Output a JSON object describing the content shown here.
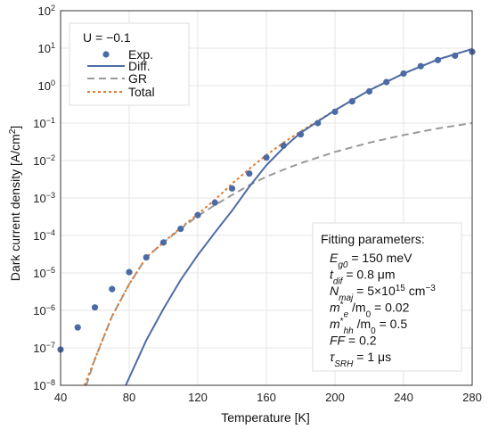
{
  "chart_data": {
    "type": "line",
    "xlabel": "Temperature [K]",
    "ylabel": "Dark current density [A/cm",
    "ylabel_sup": "2",
    "ylabel_end": "]",
    "xlim": [
      40,
      280
    ],
    "ylim_exp": [
      -8,
      2
    ],
    "yscale": "log",
    "grid": true,
    "x_ticks": [
      40,
      80,
      120,
      160,
      200,
      240,
      280
    ],
    "x_tick_labels": [
      "40",
      "80",
      "120",
      "160",
      "200",
      "240",
      "280"
    ],
    "y_tick_exps": [
      -8,
      -7,
      -6,
      -5,
      -4,
      -3,
      -2,
      -1,
      0,
      1,
      2
    ],
    "y_tick_base": "10",
    "y_tick_sups": [
      "−8",
      "−7",
      "−6",
      "−5",
      "−4",
      "−3",
      "−2",
      "−1",
      "0",
      "1",
      "2"
    ],
    "legend": {
      "title": "U = −0.1",
      "placement": "top-left",
      "entries": [
        "Exp.",
        "Diff.",
        "GR",
        "Total"
      ]
    },
    "series": [
      {
        "name": "Exp.",
        "kind": "scatter",
        "color": "#4c6ba6",
        "x": [
          40,
          50,
          60,
          70,
          80,
          90,
          100,
          110,
          120,
          130,
          140,
          150,
          160,
          170,
          180,
          190,
          200,
          210,
          220,
          230,
          240,
          250,
          260,
          270,
          280
        ],
        "y": [
          9e-08,
          3.5e-07,
          1.2e-06,
          3.7e-06,
          1.05e-05,
          2.6e-05,
          6.5e-05,
          0.00015,
          0.00035,
          0.00075,
          0.0018,
          0.0045,
          0.012,
          0.025,
          0.05,
          0.1,
          0.2,
          0.38,
          0.7,
          1.25,
          2.1,
          3.3,
          4.8,
          6.3,
          8.0
        ]
      },
      {
        "name": "Diff.",
        "kind": "line",
        "color": "#4c6ba6",
        "style": "solid",
        "x": [
          78,
          90,
          100,
          110,
          120,
          130,
          140,
          150,
          160,
          170,
          180,
          200,
          220,
          240,
          260,
          280
        ],
        "y": [
          1e-08,
          1.6e-07,
          1.1e-06,
          6.5e-06,
          3e-05,
          0.00012,
          0.00046,
          0.002,
          0.0075,
          0.022,
          0.055,
          0.22,
          0.75,
          2.1,
          5.0,
          9.5
        ]
      },
      {
        "name": "GR",
        "kind": "line",
        "color": "#999999",
        "style": "dashed",
        "x": [
          55,
          60,
          70,
          80,
          90,
          100,
          110,
          120,
          130,
          140,
          150,
          160,
          170,
          180,
          200,
          220,
          240,
          260,
          280
        ],
        "y": [
          1e-08,
          5e-08,
          7e-07,
          5e-06,
          2.6e-05,
          6.5e-05,
          0.00015,
          0.00033,
          0.00065,
          0.0012,
          0.0022,
          0.0037,
          0.0057,
          0.0085,
          0.017,
          0.03,
          0.048,
          0.072,
          0.1
        ]
      },
      {
        "name": "Total",
        "kind": "line",
        "color": "#e07b30",
        "style": "dotted",
        "x": [
          54,
          60,
          70,
          80,
          90,
          100,
          110,
          120,
          130,
          140,
          150,
          160,
          170,
          180,
          200,
          220,
          240,
          260,
          280
        ],
        "y": [
          1e-08,
          5e-08,
          7e-07,
          5e-06,
          2.6e-05,
          6.6e-05,
          0.00016,
          0.00037,
          0.0009,
          0.0024,
          0.006,
          0.014,
          0.03,
          0.06,
          0.22,
          0.75,
          2.1,
          5.0,
          9.5
        ]
      }
    ],
    "parameters_box": {
      "title": "Fitting parameters:",
      "placement": "bottom-right",
      "lines": [
        {
          "sym": "E",
          "sub": "g0",
          "rest": " = 150 meV"
        },
        {
          "sym": "t",
          "sub": "dif",
          "rest": " = 0.8 μm"
        },
        {
          "sym": "N",
          "sub": "maj",
          "rest": " = 5×10",
          "sup": "15",
          "rest2": " cm",
          "sup2": "−3"
        },
        {
          "sym": "m",
          "star": "*",
          "sub": "e",
          "rest": " /m",
          "sub2": "0",
          "rest2": " = 0.02"
        },
        {
          "sym": "m",
          "star": "*",
          "sub": "hh",
          "rest": " /m",
          "sub2": "0",
          "rest2": " = 0.5"
        },
        {
          "sym": "FF",
          "rest": " = 0.2"
        },
        {
          "sym": "τ",
          "sub": "SRH",
          "rest": " = 1 μs"
        }
      ]
    }
  }
}
